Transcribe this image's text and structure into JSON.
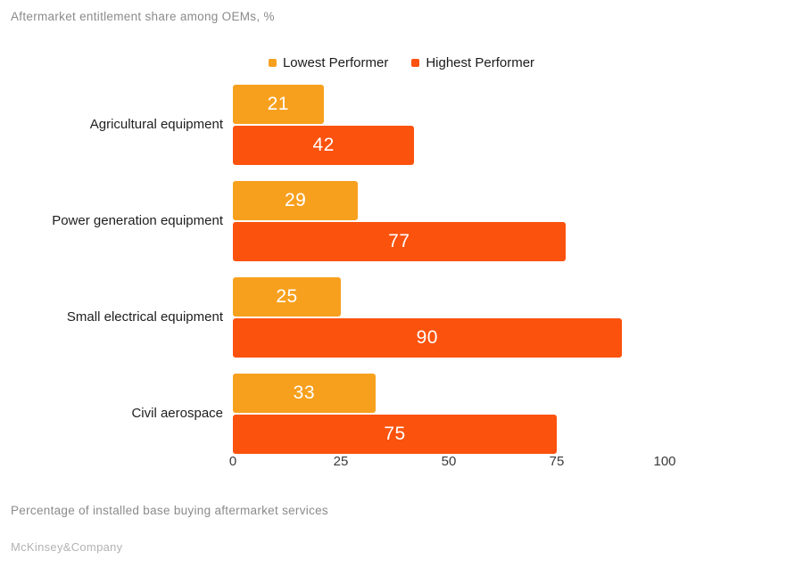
{
  "chart_data": {
    "type": "bar",
    "orientation": "horizontal",
    "title": "Aftermarket entitlement share among OEMs, %",
    "categories": [
      "Agricultural equipment",
      "Power generation equipment",
      "Small electrical equipment",
      "Civil aerospace"
    ],
    "series": [
      {
        "name": "Lowest Performer",
        "color": "#F7A01E",
        "values": [
          21,
          29,
          25,
          33
        ]
      },
      {
        "name": "Highest Performer",
        "color": "#FB520D",
        "values": [
          42,
          77,
          90,
          75
        ]
      }
    ],
    "xlim": [
      0,
      100
    ],
    "xticks": [
      0,
      25,
      50,
      75,
      100
    ],
    "grid": false,
    "legend_position": "top-center",
    "value_labels": "inside-center",
    "value_label_color": "#ffffff"
  },
  "footnote": "Percentage of installed base buying aftermarket services",
  "source": "McKinsey&Company",
  "colors": {
    "background": "#ffffff",
    "title_text": "#8b8b8b",
    "category_text": "#1e1e1e",
    "tick_text": "#3a3a3a",
    "source_text": "#b3b3b3"
  }
}
